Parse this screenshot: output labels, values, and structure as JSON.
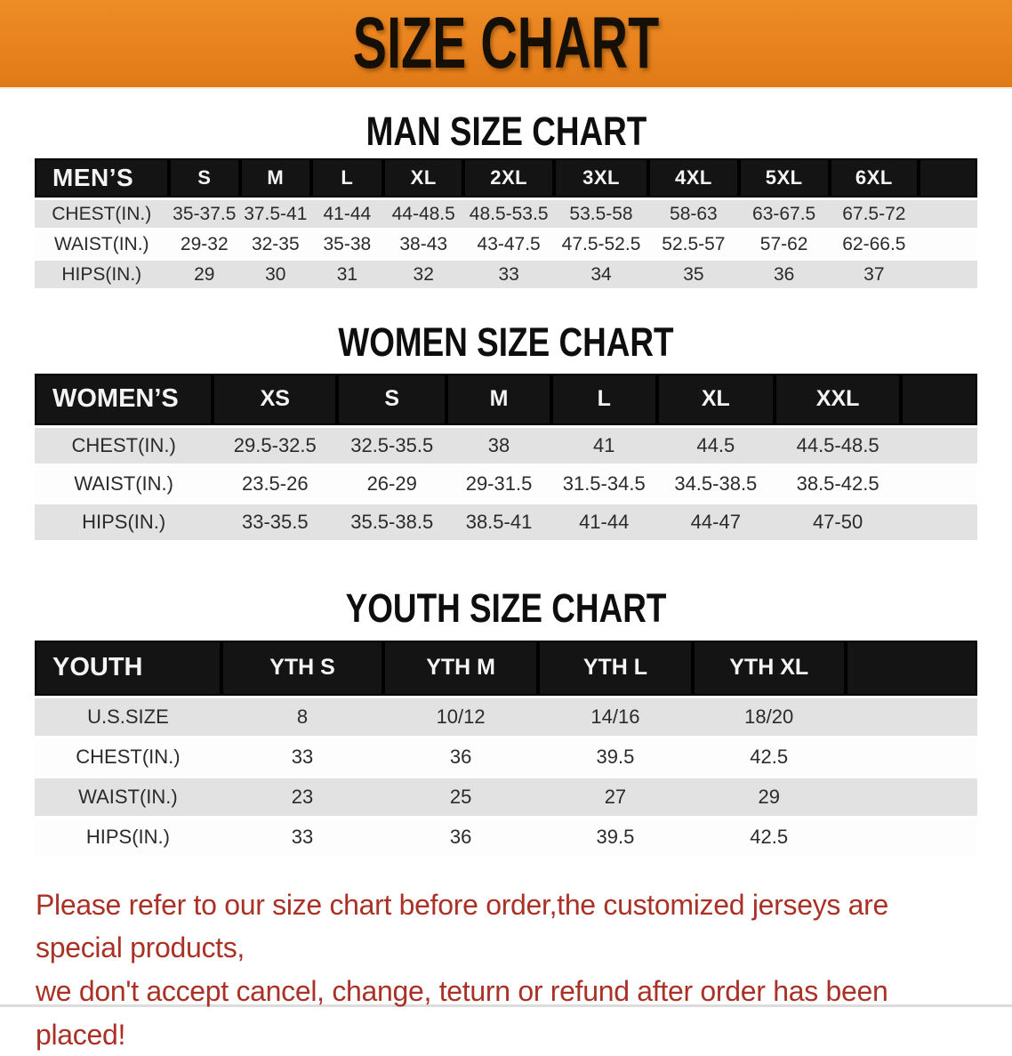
{
  "banner": {
    "title": "SIZE CHART",
    "background_color": "#E8821E",
    "title_color": "#150F05"
  },
  "sections": {
    "men": {
      "heading": "MAN SIZE CHART"
    },
    "women": {
      "heading": "WOMEN SIZE CHART"
    },
    "youth": {
      "heading": "YOUTH SIZE CHART"
    }
  },
  "tables": {
    "men": {
      "label": "MEN’S",
      "sizes": [
        "S",
        "M",
        "L",
        "XL",
        "2XL",
        "3XL",
        "4XL",
        "5XL",
        "6XL"
      ],
      "rows": [
        {
          "label": "CHEST(IN.)",
          "values": [
            "35-37.5",
            "37.5-41",
            "41-44",
            "44-48.5",
            "48.5-53.5",
            "53.5-58",
            "58-63",
            "63-67.5",
            "67.5-72"
          ]
        },
        {
          "label": "WAIST(IN.)",
          "values": [
            "29-32",
            "32-35",
            "35-38",
            "38-43",
            "43-47.5",
            "47.5-52.5",
            "52.5-57",
            "57-62",
            "62-66.5"
          ]
        },
        {
          "label": "HIPS(IN.)",
          "values": [
            "29",
            "30",
            "31",
            "32",
            "33",
            "34",
            "35",
            "36",
            "37"
          ]
        }
      ]
    },
    "women": {
      "label": "WOMEN’S",
      "sizes": [
        "XS",
        "S",
        "M",
        "L",
        "XL",
        "XXL"
      ],
      "rows": [
        {
          "label": "CHEST(IN.)",
          "values": [
            "29.5-32.5",
            "32.5-35.5",
            "38",
            "41",
            "44.5",
            "44.5-48.5"
          ]
        },
        {
          "label": "WAIST(IN.)",
          "values": [
            "23.5-26",
            "26-29",
            "29-31.5",
            "31.5-34.5",
            "34.5-38.5",
            "38.5-42.5"
          ]
        },
        {
          "label": "HIPS(IN.)",
          "values": [
            "33-35.5",
            "35.5-38.5",
            "38.5-41",
            "41-44",
            "44-47",
            "47-50"
          ]
        }
      ]
    },
    "youth": {
      "label": "YOUTH",
      "sizes": [
        "YTH S",
        "YTH M",
        "YTH L",
        "YTH XL"
      ],
      "rows": [
        {
          "label": "U.S.SIZE",
          "values": [
            "8",
            "10/12",
            "14/16",
            "18/20"
          ]
        },
        {
          "label": "CHEST(IN.)",
          "values": [
            "33",
            "36",
            "39.5",
            "42.5"
          ]
        },
        {
          "label": "WAIST(IN.)",
          "values": [
            "23",
            "25",
            "27",
            "29"
          ]
        },
        {
          "label": "HIPS(IN.)",
          "values": [
            "33",
            "36",
            "39.5",
            "42.5"
          ]
        }
      ]
    }
  },
  "footer": {
    "line1": "Please refer to our size chart before order,the customized jerseys are special products,",
    "line2": "we don't accept cancel, change, teturn or refund after order has been placed!",
    "text_color": "#A93126"
  }
}
